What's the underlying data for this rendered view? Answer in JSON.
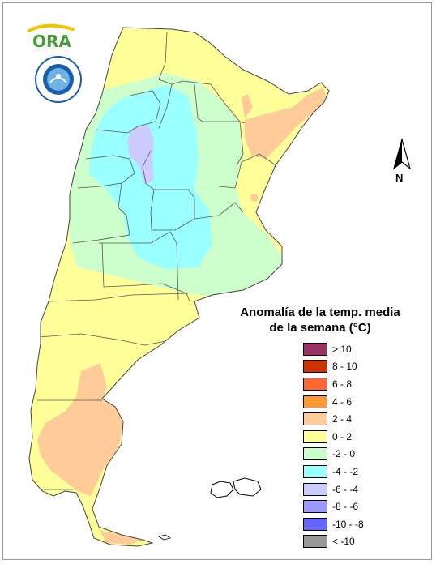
{
  "logo": {
    "brand_text": "ORA",
    "seal_text": "SERVICIO METEOROLOGICO NACIONAL ARGENTINA"
  },
  "compass": {
    "label": "N"
  },
  "legend": {
    "title_line1": "Anomalía de la temp. media",
    "title_line2": "de la semana (°C)",
    "items": [
      {
        "label": "> 10",
        "color": "#993366"
      },
      {
        "label": "8 - 10",
        "color": "#cc3300"
      },
      {
        "label": "6 - 8",
        "color": "#ff6633"
      },
      {
        "label": "4 - 6",
        "color": "#ff9933"
      },
      {
        "label": "2 - 4",
        "color": "#ffcc99"
      },
      {
        "label": "0 - 2",
        "color": "#ffff99"
      },
      {
        "label": "-2 - 0",
        "color": "#ccffcc"
      },
      {
        "label": "-4 - -2",
        "color": "#99ffff"
      },
      {
        "label": "-6 - -4",
        "color": "#ccccff"
      },
      {
        "label": "-8 - -6",
        "color": "#9999ff"
      },
      {
        "label": "-10 - -8",
        "color": "#6666ff"
      },
      {
        "label": "< -10",
        "color": "#999999"
      }
    ]
  }
}
